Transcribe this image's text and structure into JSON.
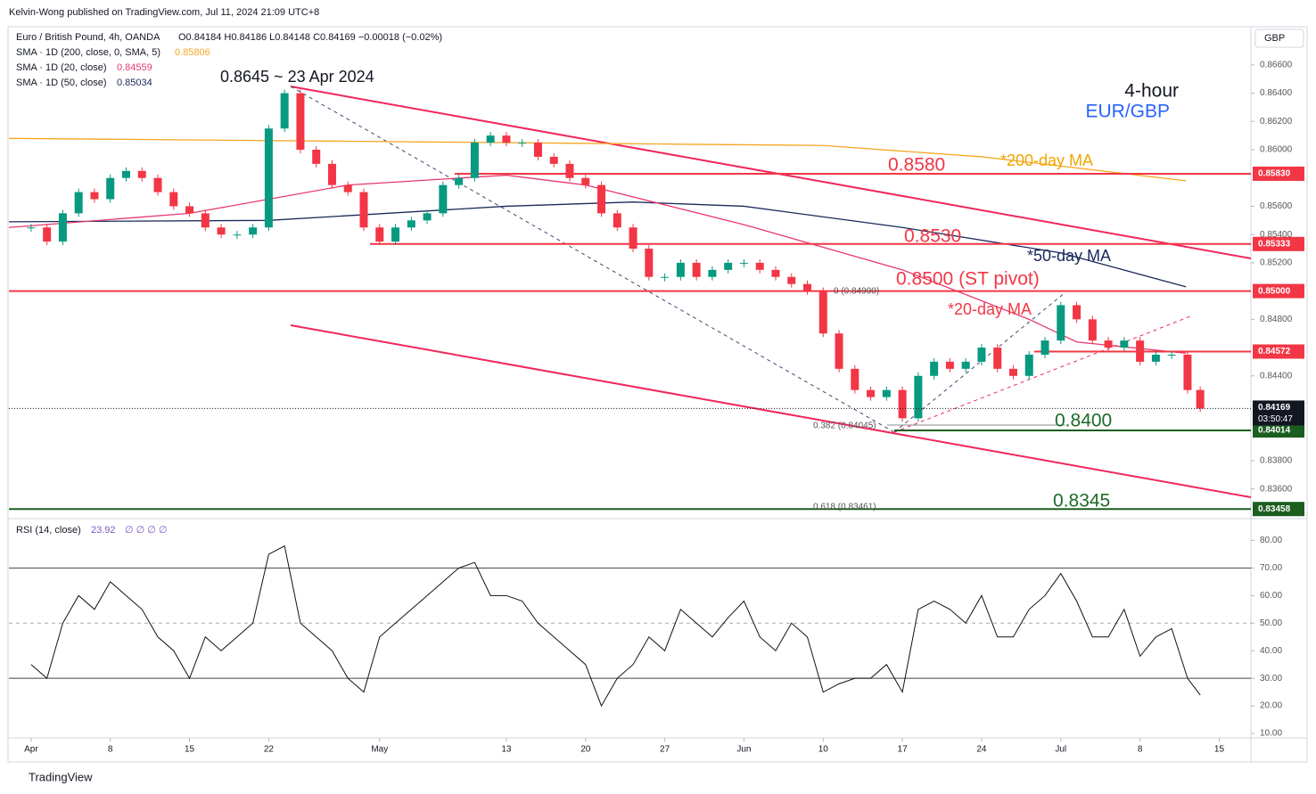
{
  "header": {
    "publisher": "Kelvin-Wong published on TradingView.com, Jul 11, 2024 21:09 UTC+8",
    "symbol": "Euro / British Pound, 4h, OANDA",
    "ohlc": "O0.84184 H0.84186 L0.84148 C0.84169 −0.00018 (−0.02%)",
    "sma200": {
      "label": "SMA · 1D (200, close, 0, SMA, 5)",
      "value": "0.85806"
    },
    "sma20": {
      "label": "SMA · 1D (20, close)",
      "value": "0.84559"
    },
    "sma50": {
      "label": "SMA · 1D (50, close)",
      "value": "0.85034"
    },
    "currency": "GBP",
    "countdown": "03:50:47",
    "rsi_label": "RSI (14, close)",
    "rsi_value": "23.92",
    "rsi_extra": "∅ ∅ ∅ ∅",
    "footer": "TradingView"
  },
  "annotations": {
    "high": "0.8645 ~ 23 Apr 2024",
    "timeframe": "4-hour",
    "pair": "EUR/GBP",
    "l8580": "0.8580",
    "ma200": "*200-day MA",
    "l8530": "0.8530",
    "ma50": "*50-day MA",
    "l8500": "0.8500 (ST pivot)",
    "ma20": "*20-day MA",
    "l8400": "0.8400",
    "l8345": "0.8345",
    "fib0": "0 (0.84990)",
    "fib382": "0.382 (0.84045)",
    "fib618": "0.618 (0.83461)"
  },
  "chart_data": [
    {
      "type": "candlestick",
      "x": [
        0,
        1,
        2,
        3,
        4,
        5,
        6,
        7,
        8,
        9,
        10,
        11,
        12,
        13,
        14,
        15,
        16,
        17,
        18,
        19,
        20,
        21,
        22,
        23,
        24,
        25,
        26,
        27,
        28,
        29,
        30,
        31,
        32,
        33,
        34,
        35,
        36,
        37,
        38,
        39,
        40,
        41,
        42,
        43,
        44,
        45,
        46,
        47,
        48,
        49,
        50,
        51,
        52,
        53,
        54,
        55,
        56,
        57,
        58,
        59,
        60,
        61,
        62,
        63,
        64,
        65,
        66,
        67,
        68,
        69,
        70,
        71,
        72,
        73,
        73.8
      ],
      "values": [
        0.8545,
        0.8535,
        0.8555,
        0.857,
        0.8565,
        0.858,
        0.8585,
        0.858,
        0.857,
        0.856,
        0.8555,
        0.8545,
        0.854,
        0.854,
        0.8545,
        0.8615,
        0.864,
        0.86,
        0.859,
        0.8575,
        0.857,
        0.8545,
        0.8535,
        0.8545,
        0.855,
        0.8555,
        0.8575,
        0.858,
        0.8605,
        0.861,
        0.8605,
        0.8605,
        0.8595,
        0.859,
        0.858,
        0.8575,
        0.8555,
        0.8545,
        0.853,
        0.851,
        0.851,
        0.852,
        0.851,
        0.8515,
        0.852,
        0.852,
        0.8515,
        0.851,
        0.8505,
        0.85,
        0.847,
        0.8445,
        0.843,
        0.8425,
        0.843,
        0.841,
        0.844,
        0.845,
        0.8445,
        0.845,
        0.846,
        0.8445,
        0.844,
        0.8455,
        0.8465,
        0.849,
        0.848,
        0.8465,
        0.846,
        0.8465,
        0.845,
        0.8455,
        0.8455,
        0.843,
        0.84169
      ],
      "value_labels": {
        "74": "0.84169"
      },
      "up_color": "#089981",
      "down_color": "#f23645",
      "xlim": [
        -1.4,
        77.0
      ],
      "ylim": [
        0.8339,
        0.8687
      ],
      "xticks": [
        {
          "value": 0,
          "label": "Apr"
        },
        {
          "value": 5,
          "label": "8"
        },
        {
          "value": 10,
          "label": "15"
        },
        {
          "value": 15,
          "label": "22"
        },
        {
          "value": 22,
          "label": "May"
        },
        {
          "value": 30,
          "label": "13"
        },
        {
          "value": 35,
          "label": "20"
        },
        {
          "value": 40,
          "label": "27"
        },
        {
          "value": 45,
          "label": "Jun"
        },
        {
          "value": 50,
          "label": "10"
        },
        {
          "value": 55,
          "label": "17"
        },
        {
          "value": 60,
          "label": "24"
        },
        {
          "value": 65,
          "label": "Jul"
        },
        {
          "value": 70,
          "label": "8"
        },
        {
          "value": 75,
          "label": "15"
        }
      ],
      "yticks": [
        {
          "value": 0.866,
          "label": "0.86600"
        },
        {
          "value": 0.864,
          "label": "0.86400"
        },
        {
          "value": 0.862,
          "label": "0.86200"
        },
        {
          "value": 0.86,
          "label": "0.86000"
        },
        {
          "value": 0.856,
          "label": "0.85600"
        },
        {
          "value": 0.854,
          "label": "0.85400"
        },
        {
          "value": 0.852,
          "label": "0.85200"
        },
        {
          "value": 0.848,
          "label": "0.84800"
        },
        {
          "value": 0.844,
          "label": "0.84400"
        },
        {
          "value": 0.838,
          "label": "0.83800"
        },
        {
          "value": 0.836,
          "label": "0.83600"
        }
      ],
      "series": [
        {
          "name": "SMA 200",
          "color": "#f5a623",
          "x": [
            -1.4,
            20,
            40,
            50,
            60,
            72.9
          ],
          "values": [
            0.8608,
            0.8606,
            0.8604,
            0.8603,
            0.8595,
            0.8578
          ]
        },
        {
          "name": "SMA 50",
          "color": "#1a2a5a",
          "x": [
            -1.4,
            15,
            30,
            38,
            45,
            55,
            65,
            72.9
          ],
          "values": [
            0.8549,
            0.855,
            0.856,
            0.8563,
            0.856,
            0.8545,
            0.8527,
            0.8503
          ]
        },
        {
          "name": "SMA 20",
          "color": "#e6396e",
          "x": [
            -1.4,
            10,
            20,
            30,
            35,
            45,
            55,
            63,
            66,
            72.9
          ],
          "values": [
            0.8545,
            0.8555,
            0.8575,
            0.8582,
            0.8575,
            0.8547,
            0.8515,
            0.848,
            0.8464,
            0.8456
          ]
        }
      ],
      "levels": [
        {
          "value": 0.8583,
          "label": "0.85830",
          "color": "#f23645"
        },
        {
          "value": 0.85333,
          "label": "0.85333",
          "color": "#f23645"
        },
        {
          "value": 0.85,
          "label": "0.85000",
          "color": "#f23645"
        },
        {
          "value": 0.84572,
          "label": "0.84572",
          "color": "#f23645"
        },
        {
          "value": 0.84014,
          "label": "0.84014",
          "color": "#1b5e20"
        },
        {
          "value": 0.83458,
          "label": "0.83458",
          "color": "#1b5e20"
        }
      ]
    },
    {
      "type": "line",
      "name": "RSI",
      "color": "#111111",
      "x": [
        0,
        1,
        2,
        3,
        4,
        5,
        6,
        7,
        8,
        9,
        10,
        11,
        12,
        13,
        14,
        15,
        16,
        17,
        18,
        19,
        20,
        21,
        22,
        23,
        24,
        25,
        26,
        27,
        28,
        29,
        30,
        31,
        32,
        33,
        34,
        35,
        36,
        37,
        38,
        39,
        40,
        41,
        42,
        43,
        44,
        45,
        46,
        47,
        48,
        49,
        50,
        51,
        52,
        53,
        54,
        55,
        56,
        57,
        58,
        59,
        60,
        61,
        62,
        63,
        64,
        65,
        66,
        67,
        68,
        69,
        70,
        71,
        72,
        73,
        73.8
      ],
      "values": [
        35,
        30,
        50,
        60,
        55,
        65,
        60,
        55,
        45,
        40,
        30,
        45,
        40,
        45,
        50,
        75,
        78,
        50,
        45,
        40,
        30,
        25,
        45,
        50,
        55,
        60,
        65,
        70,
        72,
        60,
        60,
        58,
        50,
        45,
        40,
        35,
        20,
        30,
        35,
        45,
        40,
        55,
        50,
        45,
        52,
        58,
        45,
        40,
        50,
        45,
        25,
        28,
        30,
        30,
        35,
        25,
        55,
        58,
        55,
        50,
        60,
        45,
        45,
        55,
        60,
        68,
        58,
        45,
        45,
        55,
        38,
        45,
        48,
        30,
        23.92
      ],
      "xlim": [
        -1.4,
        77.0
      ],
      "ylim": [
        8.4,
        87.9
      ],
      "yticks": [
        {
          "value": 80,
          "label": "80.00"
        },
        {
          "value": 70,
          "label": "70.00"
        },
        {
          "value": 60,
          "label": "60.00"
        },
        {
          "value": 50,
          "label": "50.00"
        },
        {
          "value": 40,
          "label": "40.00"
        },
        {
          "value": 30,
          "label": "30.00"
        },
        {
          "value": 20,
          "label": "20.00"
        },
        {
          "value": 10,
          "label": "10.00"
        }
      ],
      "bands": [
        70,
        50,
        30
      ]
    }
  ]
}
